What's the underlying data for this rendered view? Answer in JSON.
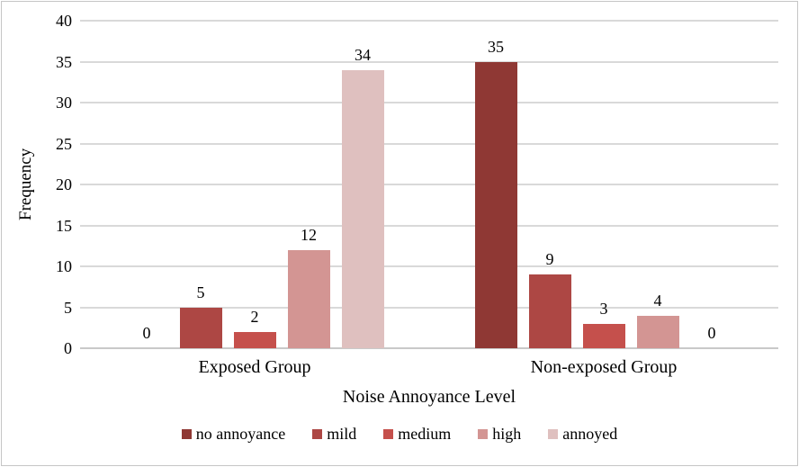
{
  "figure": {
    "background": "#ffffff",
    "border_color": "#c6c6c6"
  },
  "chart_data": {
    "type": "bar",
    "title": "",
    "xlabel": "Noise Annoyance Level",
    "ylabel": "Frequency",
    "categories": [
      "Exposed Group",
      "Non-exposed Group"
    ],
    "series": [
      {
        "name": "no annoyance",
        "color": "#8F3834",
        "values": [
          0,
          35
        ]
      },
      {
        "name": "mild",
        "color": "#AD4744",
        "values": [
          5,
          9
        ]
      },
      {
        "name": "medium",
        "color": "#C5504C",
        "values": [
          2,
          3
        ]
      },
      {
        "name": "high",
        "color": "#D39593",
        "values": [
          12,
          4
        ]
      },
      {
        "name": "annoyed",
        "color": "#DFC0BF",
        "values": [
          34,
          0
        ]
      }
    ],
    "ylim": [
      0,
      40
    ],
    "yticks": [
      0,
      5,
      10,
      15,
      20,
      25,
      30,
      35,
      40
    ],
    "grid": true,
    "legend_position": "bottom",
    "gridline_color": "#d9d9d9",
    "baseline_color": "#c9c9c9",
    "data_labels_shown": true
  }
}
